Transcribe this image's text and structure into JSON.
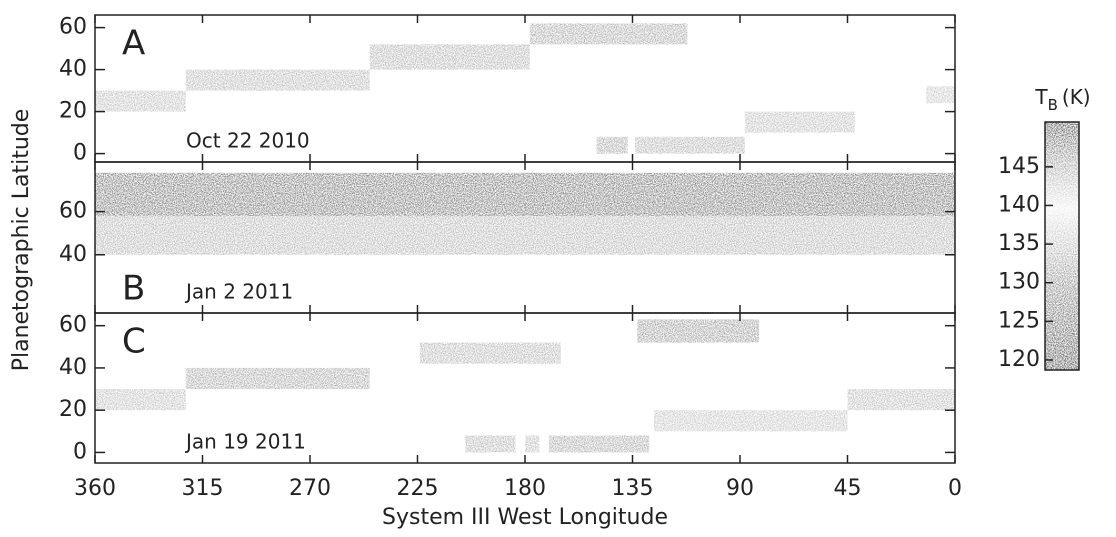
{
  "chart_data": {
    "type": "strip-map",
    "x_label": "System III West Longitude",
    "y_label": "Planetographic Latitude",
    "xlim": [
      360,
      0
    ],
    "xticks": [
      360,
      315,
      270,
      225,
      180,
      135,
      90,
      45,
      0
    ],
    "panels": [
      {
        "letter": "A",
        "date": "Oct 22 2010",
        "ylim": [
          -4,
          66
        ],
        "yticks": [
          0,
          20,
          40,
          60
        ],
        "strips": [
          {
            "lon": [
              360,
              322
            ],
            "lat": [
              20,
              30
            ],
            "color": "#a8a8a8"
          },
          {
            "lon": [
              322,
              245
            ],
            "lat": [
              30,
              40
            ],
            "color": "#a0a0a0"
          },
          {
            "lon": [
              245,
              178
            ],
            "lat": [
              40,
              52
            ],
            "color": "#9a9a9a"
          },
          {
            "lon": [
              178,
              112
            ],
            "lat": [
              52,
              62
            ],
            "color": "#8c8c8c"
          },
          {
            "lon": [
              150,
              137
            ],
            "lat": [
              0,
              8
            ],
            "color": "#8a8a8a"
          },
          {
            "lon": [
              134,
              88
            ],
            "lat": [
              0,
              8
            ],
            "color": "#999999"
          },
          {
            "lon": [
              88,
              42
            ],
            "lat": [
              10,
              20
            ],
            "color": "#a8a8a8"
          },
          {
            "lon": [
              12,
              0
            ],
            "lat": [
              24,
              32
            ],
            "color": "#b4b4b4"
          }
        ]
      },
      {
        "letter": "B",
        "date": "Jan 2 2011",
        "ylim": [
          13,
          83
        ],
        "yticks": [
          40,
          60
        ],
        "strips": [
          {
            "lon": [
              360,
              0
            ],
            "lat": [
              40,
              58
            ],
            "color": "#9a9a9a"
          },
          {
            "lon": [
              360,
              0
            ],
            "lat": [
              58,
              78
            ],
            "color": "#4a4a4a"
          }
        ]
      },
      {
        "letter": "C",
        "date": "Jan 19 2011",
        "ylim": [
          -5,
          66
        ],
        "yticks": [
          0,
          20,
          40,
          60
        ],
        "strips": [
          {
            "lon": [
              360,
              322
            ],
            "lat": [
              20,
              30
            ],
            "color": "#a8a8a8"
          },
          {
            "lon": [
              322,
              245
            ],
            "lat": [
              30,
              40
            ],
            "color": "#8a8a8a"
          },
          {
            "lon": [
              224,
              165
            ],
            "lat": [
              42,
              52
            ],
            "color": "#9c9c9c"
          },
          {
            "lon": [
              133,
              82
            ],
            "lat": [
              52,
              63
            ],
            "color": "#7a7a7a"
          },
          {
            "lon": [
              205,
              184
            ],
            "lat": [
              0,
              8
            ],
            "color": "#9a9a9a"
          },
          {
            "lon": [
              180,
              174
            ],
            "lat": [
              0,
              8
            ],
            "color": "#a4a4a4"
          },
          {
            "lon": [
              170,
              128
            ],
            "lat": [
              0,
              8
            ],
            "color": "#8c8c8c"
          },
          {
            "lon": [
              126,
              45
            ],
            "lat": [
              10,
              20
            ],
            "color": "#b0b0b0"
          },
          {
            "lon": [
              45,
              0
            ],
            "lat": [
              20,
              30
            ],
            "color": "#a4a4a4"
          }
        ]
      }
    ],
    "colorbar": {
      "label": "T",
      "label_sub": "B",
      "label_unit": "(K)",
      "clim": [
        118.7,
        150.8
      ],
      "ticks": [
        120,
        125,
        130,
        135,
        140,
        145
      ]
    }
  }
}
